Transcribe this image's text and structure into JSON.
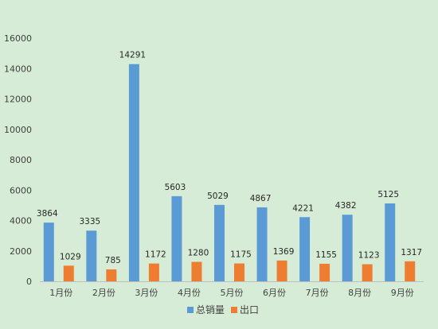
{
  "chart_data": {
    "type": "bar",
    "title": "",
    "xlabel": "",
    "ylabel": "",
    "ylim": [
      0,
      16000
    ],
    "yticks": [
      0,
      2000,
      4000,
      6000,
      8000,
      10000,
      12000,
      14000,
      16000
    ],
    "grid": false,
    "legend": "bottom",
    "categories": [
      "1月份",
      "2月份",
      "3月份",
      "4月份",
      "5月份",
      "6月份",
      "7月份",
      "8月份",
      "9月份"
    ],
    "series": [
      {
        "name": "总销量",
        "color": "#5b9bd5",
        "values": [
          3864,
          3335,
          14291,
          5603,
          5029,
          4867,
          4221,
          4382,
          5125
        ]
      },
      {
        "name": "出口",
        "color": "#ed7d31",
        "values": [
          1029,
          785,
          1172,
          1280,
          1175,
          1369,
          1155,
          1123,
          1317
        ]
      }
    ]
  }
}
